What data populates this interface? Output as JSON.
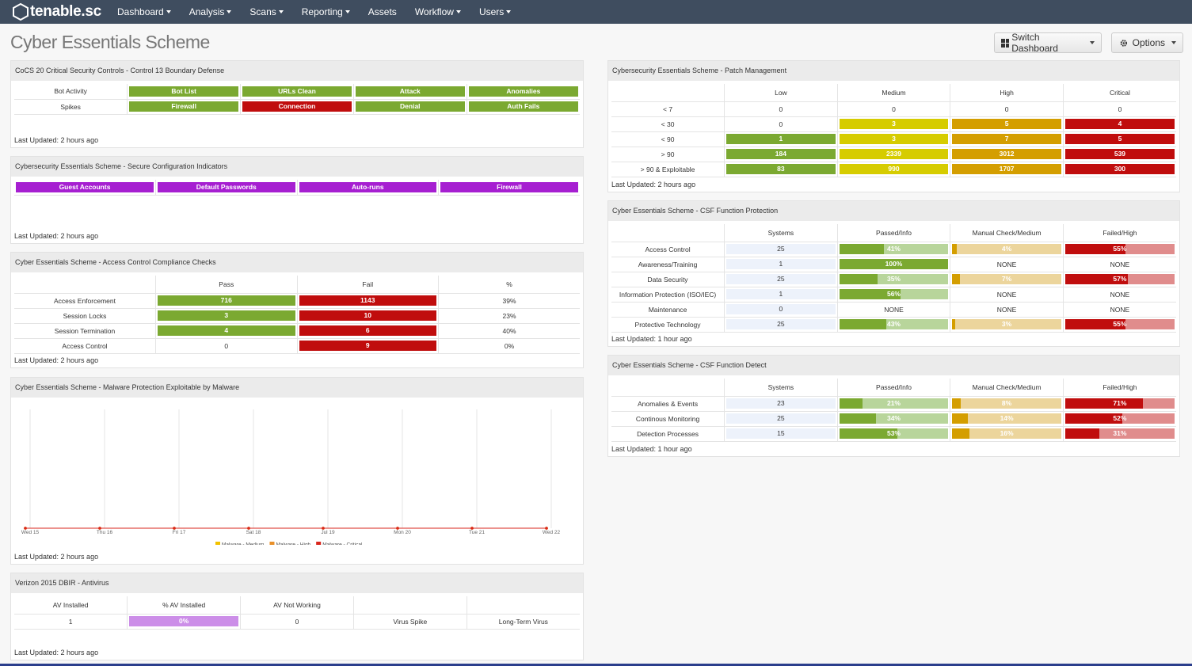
{
  "nav": {
    "brand": "tenable.sc",
    "items": [
      {
        "label": "Dashboard",
        "menu": true
      },
      {
        "label": "Analysis",
        "menu": true
      },
      {
        "label": "Scans",
        "menu": true
      },
      {
        "label": "Reporting",
        "menu": true
      },
      {
        "label": "Assets",
        "menu": false
      },
      {
        "label": "Workflow",
        "menu": true
      },
      {
        "label": "Users",
        "menu": true
      }
    ]
  },
  "page": {
    "title": "Cyber Essentials Scheme",
    "buttons": [
      "Switch Dashboard",
      "Options"
    ]
  },
  "panels": [
    {
      "title": "CoCS 20 Critical Security Controls - Control 13 Boundary Defense",
      "table": {
        "rows": [
          {
            "label": "Bot Activity",
            "cells": [
              {
                "label": "Bot List",
                "color": "#7ba931"
              },
              {
                "label": "URLs Clean",
                "color": "#7ba931"
              },
              {
                "label": "Attack",
                "color": "#7ba931"
              },
              {
                "label": "Anomalies",
                "color": "#7ba931"
              }
            ]
          },
          {
            "label": "Spikes",
            "cells": [
              {
                "label": "Firewall",
                "color": "#7ba931"
              },
              {
                "label": "Connection",
                "color": "#c00d0d"
              },
              {
                "label": "Denial",
                "color": "#7ba931"
              },
              {
                "label": "Auth Fails",
                "color": "#7ba931"
              }
            ]
          }
        ]
      },
      "footer": "Last Updated: 2 hours ago"
    },
    {
      "title": "Cybersecurity Essentials Scheme - Secure Configuration Indicators",
      "table": {
        "rows": [
          {
            "cells": [
              {
                "label": "Guest Accounts",
                "color": "#a61fd1"
              },
              {
                "label": "Default Passwords",
                "color": "#a61fd1"
              },
              {
                "label": "Auto-runs",
                "color": "#a61fd1"
              },
              {
                "label": "Firewall",
                "color": "#a61fd1"
              }
            ]
          }
        ]
      },
      "footer": "Last Updated: 2 hours ago"
    },
    {
      "title": "Cyber Essentials Scheme - Access Control Compliance Checks",
      "table": {
        "header": [
          "Pass",
          "Fail",
          "%"
        ],
        "rows": [
          {
            "label": "Access Enforcement",
            "cells": [
              {
                "value": 716,
                "color": "#7ba931"
              },
              {
                "value": 1143,
                "color": "#c00d0d"
              },
              "39%"
            ]
          },
          {
            "label": "Session Locks",
            "cells": [
              {
                "value": 3,
                "color": "#7ba931"
              },
              {
                "value": 10,
                "color": "#c00d0d"
              },
              "23%"
            ]
          },
          {
            "label": "Session Termination",
            "cells": [
              {
                "value": 4,
                "color": "#7ba931"
              },
              {
                "value": 6,
                "color": "#c00d0d"
              },
              "40%"
            ]
          },
          {
            "label": "Access Control",
            "cells": [
              0,
              {
                "value": 9,
                "color": "#c00d0d"
              },
              "0%"
            ]
          }
        ]
      },
      "footer": "Last Updated: 2 hours ago"
    },
    {
      "title": "Cyber Essentials Scheme - Malware Protection Exploitable by Malware",
      "chart": {
        "type": "line",
        "categories": [
          "Wed 15",
          "Thu 16",
          "Fri 17",
          "Sat 18",
          "Jul 19",
          "Mon 20",
          "Tue 21",
          "Wed 22"
        ],
        "ylim": [
          0,
          1
        ],
        "series": [
          {
            "name": "Malware - Medium",
            "color": "#f2c200",
            "values": [
              0,
              0,
              0,
              0,
              0,
              0,
              0,
              0
            ]
          },
          {
            "name": "Malware - High",
            "color": "#e8902a",
            "values": [
              0,
              0,
              0,
              0,
              0,
              0,
              0,
              0
            ]
          },
          {
            "name": "Malware - Critical",
            "color": "#d9261c",
            "values": [
              0,
              0,
              0,
              0,
              0,
              0,
              0,
              0
            ]
          }
        ]
      },
      "footer": "Last Updated: 2 hours ago"
    },
    {
      "title": "Verizon 2015 DBIR - Antivirus",
      "table": {
        "columns": 5,
        "header": [
          "AV Installed",
          "% AV Installed",
          "AV Not Working"
        ],
        "rows": [
          {
            "cells": [
              1,
              {
                "value": 0,
                "label": "0%",
                "color": "#a61fd1",
                "rest": "#cc8ee8"
              },
              0,
              "Virus Spike",
              "Long-Term Virus"
            ]
          }
        ]
      },
      "footer": "Last Updated: 2 hours ago"
    },
    {
      "title": "Cybersecurity Essentials Scheme - Patch Management",
      "table": {
        "header": [
          "Low",
          "Medium",
          "High",
          "Critical"
        ],
        "rows": [
          {
            "label": "< 7",
            "cells": [
              0,
              0,
              0,
              0
            ]
          },
          {
            "label": "< 30",
            "cells": [
              0,
              {
                "value": 3,
                "color": "#d6cc00"
              },
              {
                "value": 5,
                "color": "#d49e00"
              },
              {
                "value": 4,
                "color": "#c00d0d"
              }
            ]
          },
          {
            "label": "< 90",
            "cells": [
              {
                "value": 1,
                "color": "#7ba931"
              },
              {
                "value": 3,
                "color": "#d6cc00"
              },
              {
                "value": 7,
                "color": "#d49e00"
              },
              {
                "value": 5,
                "color": "#c00d0d"
              }
            ]
          },
          {
            "label": "> 90",
            "cells": [
              {
                "value": 184,
                "color": "#7ba931"
              },
              {
                "value": 2339,
                "color": "#d6cc00"
              },
              {
                "value": 3012,
                "color": "#d49e00"
              },
              {
                "value": 539,
                "color": "#c00d0d"
              }
            ]
          },
          {
            "label": "> 90 & Exploitable",
            "cells": [
              {
                "value": 83,
                "color": "#7ba931"
              },
              {
                "value": 990,
                "color": "#d6cc00"
              },
              {
                "value": 1707,
                "color": "#d49e00"
              },
              {
                "value": 300,
                "color": "#c00d0d"
              }
            ]
          }
        ]
      },
      "footer": "Last Updated: 2 hours ago"
    },
    {
      "title": "Cyber Essentials Scheme - CSF Function Protection",
      "table": {
        "header": [
          "Systems",
          "Passed/Info",
          "Manual Check/Medium",
          "Failed/High"
        ],
        "rows": [
          {
            "label": "Access Control",
            "cells": [
              {
                "value": 25,
                "color": "#edf2fb"
              },
              {
                "value": 41,
                "label": "41%",
                "color": "#7ba931",
                "rest": "#b8d59b"
              },
              {
                "value": 4,
                "label": "4%",
                "color": "#d49e00",
                "rest": "#ecd59c"
              },
              {
                "value": 55,
                "label": "55%",
                "color": "#c00d0d",
                "rest": "#e08c8c"
              }
            ]
          },
          {
            "label": "Awareness/Training",
            "cells": [
              {
                "value": 1,
                "color": "#edf2fb"
              },
              {
                "value": 100,
                "label": "100%",
                "color": "#7ba931",
                "rest": "#b8d59b"
              },
              "NONE",
              "NONE"
            ]
          },
          {
            "label": "Data Security",
            "cells": [
              {
                "value": 25,
                "color": "#edf2fb"
              },
              {
                "value": 35,
                "label": "35%",
                "color": "#7ba931",
                "rest": "#b8d59b"
              },
              {
                "value": 7,
                "label": "7%",
                "color": "#d49e00",
                "rest": "#ecd59c"
              },
              {
                "value": 57,
                "label": "57%",
                "color": "#c00d0d",
                "rest": "#e08c8c"
              }
            ]
          },
          {
            "label": "Information Protection (ISO/IEC)",
            "cells": [
              {
                "value": 1,
                "color": "#edf2fb"
              },
              {
                "value": 56,
                "label": "56%",
                "color": "#7ba931",
                "rest": "#b8d59b"
              },
              "NONE",
              "NONE"
            ]
          },
          {
            "label": "Maintenance",
            "cells": [
              {
                "value": 0,
                "color": "#edf2fb"
              },
              "NONE",
              "NONE",
              "NONE"
            ]
          },
          {
            "label": "Protective Technology",
            "cells": [
              {
                "value": 25,
                "color": "#edf2fb"
              },
              {
                "value": 43,
                "label": "43%",
                "color": "#7ba931",
                "rest": "#b8d59b"
              },
              {
                "value": 3,
                "label": "3%",
                "color": "#d49e00",
                "rest": "#ecd59c"
              },
              {
                "value": 55,
                "label": "55%",
                "color": "#c00d0d",
                "rest": "#e08c8c"
              }
            ]
          }
        ]
      },
      "footer": "Last Updated: 1 hour ago"
    },
    {
      "title": "Cyber Essentials Scheme - CSF Function Detect",
      "table": {
        "header": [
          "Systems",
          "Passed/Info",
          "Manual Check/Medium",
          "Failed/High"
        ],
        "rows": [
          {
            "label": "Anomalies & Events",
            "cells": [
              {
                "value": 23,
                "color": "#edf2fb"
              },
              {
                "value": 21,
                "label": "21%",
                "color": "#7ba931",
                "rest": "#b8d59b"
              },
              {
                "value": 8,
                "label": "8%",
                "color": "#d49e00",
                "rest": "#ecd59c"
              },
              {
                "value": 71,
                "label": "71%",
                "color": "#c00d0d",
                "rest": "#e08c8c"
              }
            ]
          },
          {
            "label": "Continous Monitoring",
            "cells": [
              {
                "value": 25,
                "color": "#edf2fb"
              },
              {
                "value": 34,
                "label": "34%",
                "color": "#7ba931",
                "rest": "#b8d59b"
              },
              {
                "value": 14,
                "label": "14%",
                "color": "#d49e00",
                "rest": "#ecd59c"
              },
              {
                "value": 52,
                "label": "52%",
                "color": "#c00d0d",
                "rest": "#e08c8c"
              }
            ]
          },
          {
            "label": "Detection Processes",
            "cells": [
              {
                "value": 15,
                "color": "#edf2fb"
              },
              {
                "value": 53,
                "label": "53%",
                "color": "#7ba931",
                "rest": "#b8d59b"
              },
              {
                "value": 16,
                "label": "16%",
                "color": "#d49e00",
                "rest": "#ecd59c"
              },
              {
                "value": 31,
                "label": "31%",
                "color": "#c00d0d",
                "rest": "#e08c8c"
              }
            ]
          }
        ]
      },
      "footer": "Last Updated: 1 hour ago"
    }
  ]
}
